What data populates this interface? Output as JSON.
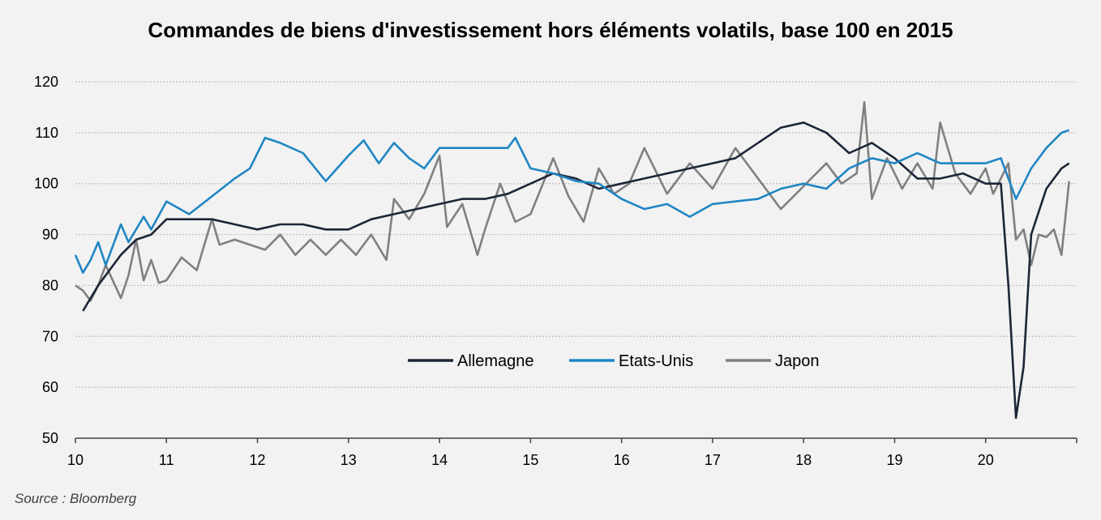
{
  "title": "Commandes de biens d'investissement hors éléments volatils, base 100 en 2015",
  "source": "Source : Bloomberg",
  "chart_data": {
    "type": "line",
    "title": "Commandes de biens d'investissement hors éléments volatils, base 100 en 2015",
    "xlabel": "",
    "ylabel": "",
    "ylim": [
      50,
      120
    ],
    "yticks": [
      50,
      60,
      70,
      80,
      90,
      100,
      110,
      120
    ],
    "xlim": [
      10,
      21
    ],
    "xticks": [
      "10",
      "11",
      "12",
      "13",
      "14",
      "15",
      "16",
      "17",
      "18",
      "19",
      "20"
    ],
    "grid": "horizontal dotted",
    "legend_position": "center-bottom",
    "series": [
      {
        "name": "Allemagne",
        "color": "#1c2638",
        "x": [
          10.083,
          10.25,
          10.5,
          10.667,
          10.833,
          11.0,
          11.25,
          11.5,
          11.75,
          12.0,
          12.25,
          12.5,
          12.75,
          13.0,
          13.25,
          13.5,
          13.75,
          14.0,
          14.25,
          14.5,
          14.75,
          15.0,
          15.25,
          15.5,
          15.75,
          16.0,
          16.25,
          16.5,
          16.75,
          17.0,
          17.25,
          17.5,
          17.75,
          18.0,
          18.25,
          18.5,
          18.75,
          19.0,
          19.25,
          19.5,
          19.75,
          20.0,
          20.167,
          20.25,
          20.333,
          20.417,
          20.5,
          20.667,
          20.833,
          20.917
        ],
        "values": [
          75,
          80,
          86,
          89,
          90,
          93,
          93,
          93,
          92,
          91,
          92,
          92,
          91,
          91,
          93,
          94,
          95,
          96,
          97,
          97,
          98,
          100,
          102,
          101,
          99,
          100,
          101,
          102,
          103,
          104,
          105,
          108,
          111,
          112,
          110,
          106,
          108,
          105,
          101,
          101,
          102,
          100,
          100,
          80,
          54,
          64,
          90,
          99,
          103,
          104
        ]
      },
      {
        "name": "Etats-Unis",
        "color": "#1f86c3",
        "x": [
          10.0,
          10.083,
          10.167,
          10.25,
          10.333,
          10.5,
          10.583,
          10.75,
          10.833,
          11.0,
          11.25,
          11.5,
          11.75,
          11.917,
          12.083,
          12.25,
          12.5,
          12.75,
          13.0,
          13.167,
          13.333,
          13.5,
          13.667,
          13.833,
          14.0,
          14.25,
          14.5,
          14.75,
          14.833,
          15.0,
          15.25,
          15.5,
          15.75,
          16.0,
          16.25,
          16.5,
          16.75,
          17.0,
          17.25,
          17.5,
          17.75,
          18.0,
          18.25,
          18.5,
          18.75,
          19.0,
          19.25,
          19.5,
          19.75,
          20.0,
          20.167,
          20.333,
          20.5,
          20.667,
          20.833,
          20.917
        ],
        "values": [
          86,
          82.5,
          85,
          88.5,
          84,
          92,
          88.5,
          93.5,
          91,
          96.5,
          94,
          97.5,
          101,
          103,
          109,
          108,
          106,
          100.5,
          105.5,
          108.5,
          104,
          108,
          105,
          103,
          107,
          107,
          107,
          107,
          109,
          103,
          102,
          100.5,
          100,
          97,
          95,
          96,
          93.5,
          96,
          96.5,
          97,
          99,
          100,
          99,
          103,
          105,
          104,
          106,
          104,
          104,
          104,
          105,
          97,
          103,
          107,
          110,
          110.5
        ]
      },
      {
        "name": "Japon",
        "color": "#808080",
        "x": [
          10.0,
          10.083,
          10.167,
          10.25,
          10.333,
          10.5,
          10.583,
          10.667,
          10.75,
          10.833,
          10.917,
          11.0,
          11.167,
          11.333,
          11.5,
          11.583,
          11.75,
          11.917,
          12.083,
          12.25,
          12.417,
          12.583,
          12.75,
          12.917,
          13.083,
          13.25,
          13.417,
          13.5,
          13.667,
          13.833,
          14.0,
          14.083,
          14.25,
          14.417,
          14.5,
          14.667,
          14.833,
          15.0,
          15.25,
          15.417,
          15.583,
          15.75,
          15.917,
          16.083,
          16.25,
          16.5,
          16.75,
          17.0,
          17.25,
          17.5,
          17.75,
          17.917,
          18.083,
          18.25,
          18.417,
          18.583,
          18.667,
          18.75,
          18.917,
          19.083,
          19.25,
          19.417,
          19.5,
          19.667,
          19.833,
          20.0,
          20.083,
          20.25,
          20.333,
          20.417,
          20.5,
          20.583,
          20.667,
          20.75,
          20.833,
          20.917
        ],
        "values": [
          80,
          79,
          77,
          80,
          84,
          77.5,
          82,
          89,
          81,
          85,
          80.5,
          81,
          85.5,
          83,
          93,
          88,
          89,
          88,
          87,
          90,
          86,
          89,
          86,
          89,
          86,
          90,
          85,
          97,
          93,
          98,
          105.5,
          91.5,
          96,
          86,
          91,
          100,
          92.5,
          94,
          105,
          97.5,
          92.5,
          103,
          98,
          100,
          107,
          98,
          104,
          99,
          107,
          101,
          95,
          98,
          101,
          104,
          100,
          102,
          116,
          97,
          105,
          99,
          104,
          99,
          112,
          102,
          98,
          103,
          98,
          104,
          89,
          91,
          84,
          90,
          89.5,
          91,
          86,
          100.5
        ]
      }
    ]
  }
}
